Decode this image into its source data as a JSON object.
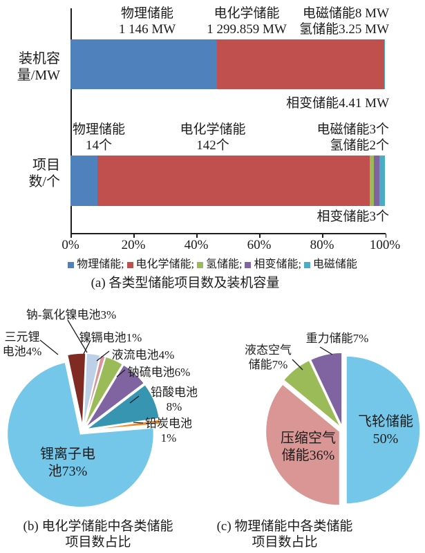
{
  "panel_a": {
    "y_axis_labels": [
      "装机容\n量/MW",
      "项目\n数/个"
    ],
    "annotations": {
      "bar1_physical": "物理储能\n1 146 MW",
      "bar1_electrochemical": "电化学储能\n1 299.859 MW",
      "bar1_em_hydrogen": "电磁储能8 MW\n氢储能3.25 MW",
      "bar1_phase_change": "相变储能4.41 MW",
      "bar2_physical": "物理储能\n14个",
      "bar2_electrochemical": "电化学储能\n142个",
      "bar2_em_hydrogen": "电磁储能3个\n氢储能2个",
      "bar2_phase_change": "相变储能3个"
    },
    "legend_separator": "; "
  },
  "chart_data": [
    {
      "type": "bar",
      "subtype": "stacked-horizontal-100percent",
      "title": "(a) 各类型储能项目数及装机容量",
      "categories": [
        "装机容量/MW",
        "项目数/个"
      ],
      "series": [
        {
          "name": "物理储能",
          "color": "#4f81bd",
          "values": [
            1146,
            14
          ]
        },
        {
          "name": "电化学储能",
          "color": "#c0504d",
          "values": [
            1299.859,
            142
          ]
        },
        {
          "name": "氢储能",
          "color": "#9bbb59",
          "values": [
            3.25,
            2
          ]
        },
        {
          "name": "相变储能",
          "color": "#8064a2",
          "values": [
            4.41,
            3
          ]
        },
        {
          "name": "电磁储能",
          "color": "#4bacc6",
          "values": [
            8,
            3
          ]
        }
      ],
      "value_units": [
        "MW",
        "个"
      ],
      "x_ticks": [
        "0%",
        "20%",
        "40%",
        "60%",
        "80%",
        "100%"
      ],
      "xlim": [
        0,
        100
      ],
      "legend_position": "bottom",
      "grid": false
    },
    {
      "type": "pie",
      "title": "(b) 电化学储能中各类储能\n项目数占比",
      "start_angle_deg": -12,
      "slices": [
        {
          "name": "三元锂电池",
          "pct": 4,
          "color": "#7f2b24",
          "label": "三元锂\n电池4%"
        },
        {
          "name": "钠-氯化镍电池",
          "pct": 3,
          "color": "#bdd0e7",
          "label": "钠-氯化镍电池3%"
        },
        {
          "name": "镍镉电池",
          "pct": 1,
          "color": "#d9949c",
          "label": "镍镉电池1%"
        },
        {
          "name": "液流电池",
          "pct": 4,
          "color": "#9bbb59",
          "label": "液流电池4%"
        },
        {
          "name": "钠硫电池",
          "pct": 6,
          "color": "#8064a2",
          "label": "钠硫电池6%"
        },
        {
          "name": "铅酸电池",
          "pct": 8,
          "color": "#3795b2",
          "label": "铅酸电池\n8%"
        },
        {
          "name": "铅炭电池",
          "pct": 1,
          "color": "#eb8c30",
          "label": "铅炭电池\n1%"
        },
        {
          "name": "锂离子电池",
          "pct": 73,
          "color": "#74c7e8",
          "label": "锂离子电\n池73%"
        }
      ]
    },
    {
      "type": "pie",
      "title": "(c) 物理储能中各类储能\n项目数占比",
      "start_angle_deg": 0,
      "slices": [
        {
          "name": "飞轮储能",
          "pct": 50,
          "color": "#74c7e8",
          "label": "飞轮储能\n50%"
        },
        {
          "name": "压缩空气储能",
          "pct": 36,
          "color": "#d99694",
          "label": "压缩空气\n储能36%"
        },
        {
          "name": "液态空气储能",
          "pct": 7,
          "color": "#9bbb59",
          "label": "液态空气\n储能7%"
        },
        {
          "name": "重力储能",
          "pct": 7,
          "color": "#8064a2",
          "label": "重力储能7%"
        }
      ]
    }
  ]
}
